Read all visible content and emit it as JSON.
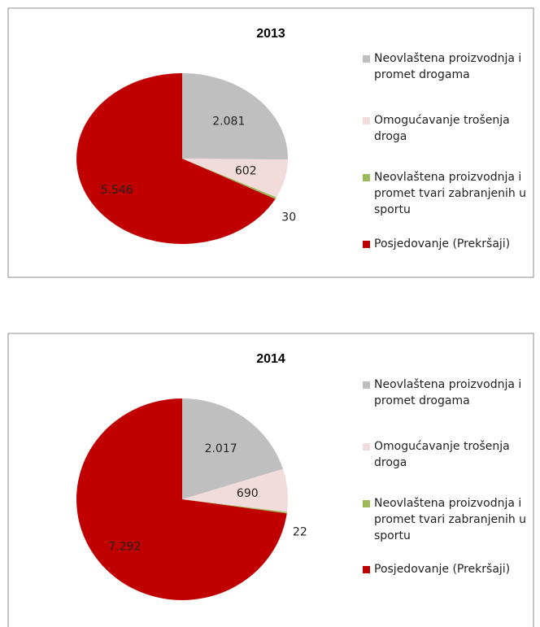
{
  "chart_data": [
    {
      "type": "pie",
      "title": "2013",
      "categories": [
        "Neovlaštena proizvodnja i promet drogama",
        "Omogućavanje trošenja droga",
        "Neovlaštena proizvodnja i promet tvari zabranjenih u sportu",
        "Posjedovanje (Prekršaji)"
      ],
      "values": [
        2081,
        602,
        30,
        5546
      ],
      "value_labels": [
        "2.081",
        "602",
        "30",
        "5.546"
      ],
      "colors": [
        "#bfbfbf",
        "#f2dcdb",
        "#9bbb59",
        "#c00000"
      ]
    },
    {
      "type": "pie",
      "title": "2014",
      "categories": [
        "Neovlaštena proizvodnja i promet drogama",
        "Omogućavanje trošenja droga",
        "Neovlaštena proizvodnja i promet tvari zabranjenih u sportu",
        "Posjedovanje (Prekršaji)"
      ],
      "values": [
        2017,
        690,
        22,
        7292
      ],
      "value_labels": [
        "2.017",
        "690",
        "22",
        "7.292"
      ],
      "colors": [
        "#bfbfbf",
        "#f2dcdb",
        "#9bbb59",
        "#c00000"
      ]
    }
  ]
}
